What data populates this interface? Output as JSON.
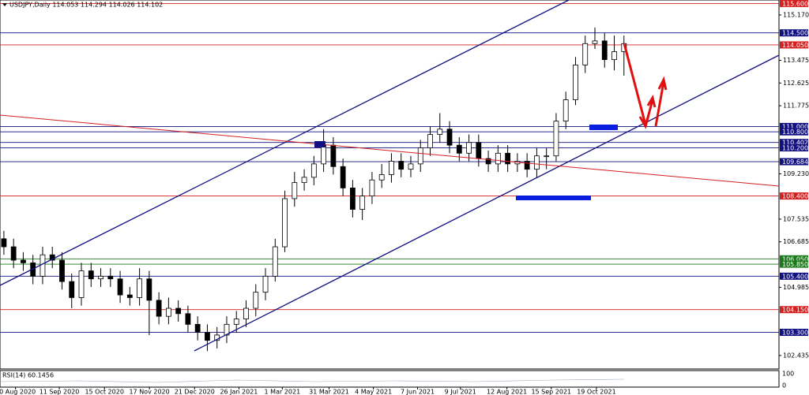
{
  "chart_data": {
    "type": "candlestick",
    "title": "USDJPY,Daily  114.053 114.294 114.026 114.102",
    "x": [
      2,
      7,
      12,
      17,
      22,
      27,
      32,
      37,
      42,
      47,
      52,
      57,
      62,
      67,
      72,
      77,
      82,
      87,
      92,
      97,
      102,
      107,
      112,
      117,
      122,
      127,
      132,
      137,
      142,
      147,
      152,
      157,
      162,
      167,
      172,
      177,
      182,
      187,
      192,
      197,
      202,
      207,
      212,
      217,
      222,
      227,
      232,
      237,
      242,
      247,
      252,
      257,
      262,
      267,
      272,
      277,
      282,
      287,
      292,
      297,
      302,
      307,
      312,
      317,
      322
    ],
    "open": [
      106.8,
      106.5,
      106.0,
      105.9,
      105.4,
      106.2,
      106.0,
      105.2,
      104.6,
      105.6,
      105.3,
      105.4,
      105.3,
      104.7,
      104.6,
      105.3,
      104.5,
      103.9,
      104.2,
      104.0,
      103.6,
      103.3,
      103.0,
      103.2,
      103.6,
      103.8,
      104.2,
      104.8,
      105.4,
      106.5,
      108.3,
      108.9,
      109.1,
      109.6,
      110.3,
      109.5,
      108.7,
      107.9,
      108.4,
      109.0,
      109.2,
      109.7,
      109.4,
      109.6,
      110.2,
      110.7,
      110.9,
      110.3,
      110.0,
      110.4,
      109.8,
      109.6,
      110.0,
      109.6,
      109.7,
      109.4,
      109.9,
      109.9,
      111.2,
      112.0,
      113.3,
      114.1,
      114.2,
      113.5,
      113.8
    ],
    "high": [
      107.1,
      106.8,
      106.3,
      106.2,
      106.5,
      106.5,
      106.3,
      105.5,
      105.9,
      105.9,
      105.7,
      105.7,
      105.6,
      105.0,
      105.7,
      105.6,
      104.8,
      104.6,
      104.5,
      104.3,
      103.9,
      103.6,
      103.5,
      103.9,
      104.1,
      104.5,
      105.1,
      105.7,
      106.8,
      108.6,
      109.3,
      109.4,
      109.9,
      110.9,
      110.6,
      109.8,
      109.0,
      108.7,
      109.3,
      109.6,
      110.0,
      110.0,
      109.9,
      110.5,
      111.0,
      111.5,
      111.2,
      110.6,
      110.7,
      110.7,
      110.1,
      110.3,
      110.3,
      110.0,
      110.0,
      110.2,
      110.2,
      111.5,
      112.3,
      113.6,
      114.4,
      114.7,
      114.5,
      114.4,
      114.4
    ],
    "low": [
      106.2,
      105.7,
      105.6,
      105.1,
      105.1,
      105.7,
      104.9,
      104.2,
      104.3,
      105.0,
      105.0,
      105.0,
      104.4,
      104.3,
      104.3,
      103.2,
      103.6,
      103.6,
      103.7,
      103.3,
      103.0,
      102.6,
      102.7,
      102.9,
      103.3,
      103.5,
      103.9,
      104.5,
      105.2,
      106.3,
      108.0,
      108.6,
      108.8,
      109.3,
      109.2,
      108.4,
      107.6,
      107.5,
      108.1,
      108.7,
      108.9,
      109.1,
      109.1,
      109.3,
      109.9,
      110.4,
      110.0,
      109.7,
      109.7,
      109.5,
      109.3,
      109.3,
      109.3,
      109.3,
      109.1,
      109.1,
      109.4,
      109.7,
      110.9,
      111.8,
      113.0,
      113.9,
      113.2,
      113.1,
      112.9
    ],
    "close": [
      106.5,
      106.0,
      105.9,
      105.4,
      106.2,
      106.0,
      105.2,
      104.6,
      105.6,
      105.3,
      105.4,
      105.3,
      104.7,
      104.6,
      105.3,
      104.5,
      103.9,
      104.2,
      104.0,
      103.6,
      103.3,
      103.0,
      103.2,
      103.6,
      103.8,
      104.2,
      104.8,
      105.4,
      106.5,
      108.3,
      108.9,
      109.1,
      109.6,
      110.3,
      109.5,
      108.7,
      107.9,
      108.4,
      109.0,
      109.2,
      109.7,
      109.4,
      109.6,
      110.2,
      110.7,
      110.9,
      110.3,
      110.0,
      110.4,
      109.8,
      109.6,
      110.0,
      109.6,
      109.7,
      109.4,
      109.9,
      109.9,
      111.2,
      112.0,
      113.3,
      114.1,
      114.2,
      113.5,
      113.8,
      114.1
    ],
    "up_color": "#ffffff",
    "down_color": "#000000",
    "xlim": [
      0,
      402
    ],
    "ylim": [
      101.93,
      115.73
    ],
    "xticks": [
      {
        "value": 8,
        "label": "10 Aug 2020"
      },
      {
        "value": 30.6,
        "label": "11 Sep 2020"
      },
      {
        "value": 53.9,
        "label": "15 Oct 2020"
      },
      {
        "value": 77.1,
        "label": "17 Nov 2020"
      },
      {
        "value": 100.4,
        "label": "21 Dec 2020"
      },
      {
        "value": 123.3,
        "label": "26 Jan 2021"
      },
      {
        "value": 145.7,
        "label": "1 Mar 2021"
      },
      {
        "value": 169.8,
        "label": "31 Mar 2021"
      },
      {
        "value": 192.7,
        "label": "4 May 2021"
      },
      {
        "value": 215.5,
        "label": "7 Jun 2021"
      },
      {
        "value": 237.6,
        "label": "9 Jul 2021"
      },
      {
        "value": 261.6,
        "label": "12 Aug 2021"
      },
      {
        "value": 284.5,
        "label": "15 Sep 2021"
      },
      {
        "value": 307.8,
        "label": "19 Oct 2021"
      }
    ],
    "yticks": [
      {
        "value": 115.17,
        "label": "115.170"
      },
      113.475,
      112.625,
      111.775,
      {
        "value": 109.23,
        "label": "109.230"
      },
      107.535,
      106.685,
      104.985,
      102.435
    ],
    "levels": [
      {
        "value": 115.6,
        "label": "115.600",
        "color": "#d42020"
      },
      {
        "value": 114.5,
        "label": "114.500",
        "color": "#101080"
      },
      {
        "value": 114.05,
        "label": "114.050",
        "color": "#d42020"
      },
      {
        "value": 111.0,
        "label": "111.000",
        "color": "#101080"
      },
      {
        "value": 110.8,
        "label": "110.800",
        "color": "#101080"
      },
      {
        "value": 110.402,
        "label": "110.402",
        "color": "#101080"
      },
      {
        "value": 110.2,
        "label": "110.200",
        "color": "#101080"
      },
      {
        "value": 109.684,
        "label": "109.684",
        "color": "#101080"
      },
      {
        "value": 108.4,
        "label": "108.400",
        "color": "#d42020"
      },
      {
        "value": 106.05,
        "label": "106.050",
        "color": "#1a7a1a"
      },
      {
        "value": 105.85,
        "label": "105.850",
        "color": "#1a7a1a"
      },
      {
        "value": 105.4,
        "label": "105.400",
        "color": "#101080"
      },
      {
        "value": 104.15,
        "label": "104.150",
        "color": "#d42020"
      },
      {
        "value": 103.3,
        "label": "103.300",
        "color": "#101080"
      }
    ],
    "rsi_label": "RSI(14) 60.1456",
    "rsi_ylim": [
      0,
      100
    ],
    "rsi_yticks": [
      100,
      0
    ]
  }
}
